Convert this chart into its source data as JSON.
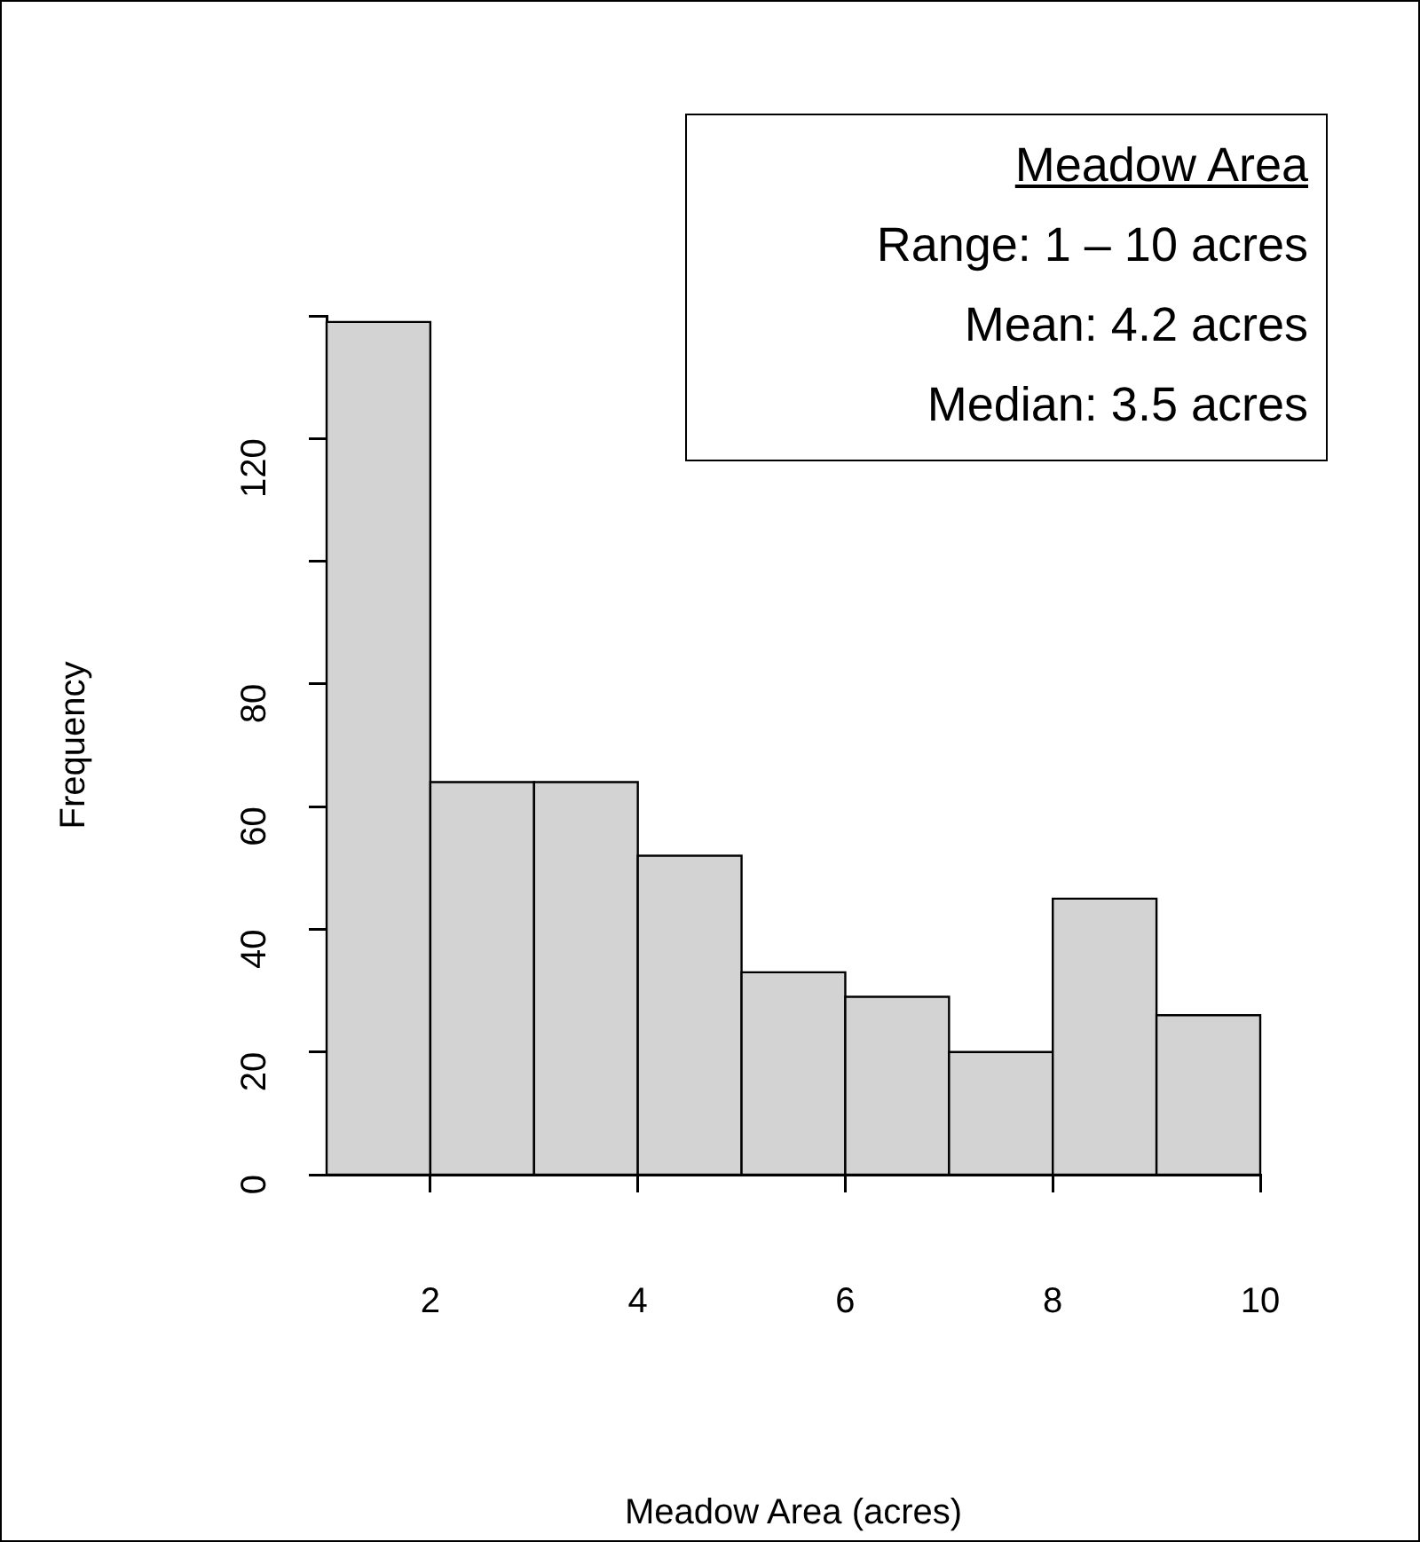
{
  "chart_data": {
    "type": "histogram",
    "xlabel": "Meadow Area (acres)",
    "ylabel": "Frequency",
    "bins": [
      1,
      2,
      3,
      4,
      5,
      6,
      7,
      8,
      9,
      10
    ],
    "values": [
      139,
      64,
      64,
      52,
      33,
      29,
      20,
      45,
      26
    ],
    "color": "#d3d3d3",
    "xlim": [
      1,
      10
    ],
    "xticks": [
      2,
      4,
      6,
      8,
      10
    ],
    "ylim": [
      0,
      140
    ],
    "yticks": [
      0,
      20,
      40,
      60,
      80,
      {
        "value": 100,
        "label": null
      },
      120,
      {
        "value": 140,
        "label": null
      }
    ],
    "annotations": [
      "Meadow Area",
      "Range: 1 – 10 acres",
      "Mean: 4.2 acres",
      "Median: 3.5 acres"
    ]
  }
}
